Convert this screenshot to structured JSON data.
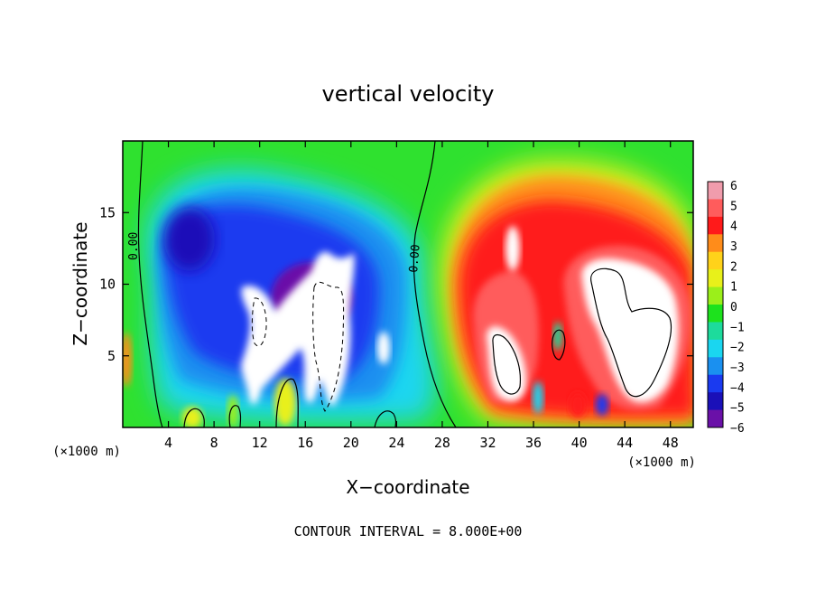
{
  "chart_data": {
    "type": "heatmap",
    "title": "vertical velocity",
    "xlabel": "X−coordinate",
    "ylabel": "Z−coordinate",
    "x_unit": "(×1000 m)",
    "y_unit": "(×1000 m)",
    "xlim": [
      0,
      50
    ],
    "ylim": [
      0,
      20
    ],
    "x_ticks": [
      "4",
      "8",
      "12",
      "16",
      "20",
      "24",
      "28",
      "32",
      "36",
      "40",
      "44",
      "48"
    ],
    "y_ticks": [
      "5",
      "10",
      "15"
    ],
    "contour_interval_text": "CONTOUR INTERVAL = 8.000E+00",
    "contour_labels": [
      "0.00",
      "0.00"
    ],
    "colorbar": {
      "ticks": [
        "6",
        "5",
        "4",
        "3",
        "2",
        "1",
        "0",
        "−1",
        "−2",
        "−3",
        "−4",
        "−5",
        "−6"
      ],
      "range": [
        -6,
        6
      ],
      "colors": [
        "#f09cac",
        "#ff5c5c",
        "#ff1a1a",
        "#ff8c1a",
        "#ffd21a",
        "#e8f01a",
        "#9bef1a",
        "#1de21d",
        "#1ddb9c",
        "#1ad6f0",
        "#1a90f0",
        "#1a3af0",
        "#1a10b8",
        "#6a10a8"
      ]
    },
    "features": [
      {
        "kind": "downdraft",
        "x": 6,
        "z": 12.5,
        "value": -5
      },
      {
        "kind": "downdraft",
        "x": 18,
        "z": 8,
        "value": -6
      },
      {
        "kind": "updraft",
        "x": 34,
        "z": 7,
        "value": 6
      },
      {
        "kind": "updraft",
        "x": 44,
        "z": 10,
        "value": 6
      }
    ]
  }
}
